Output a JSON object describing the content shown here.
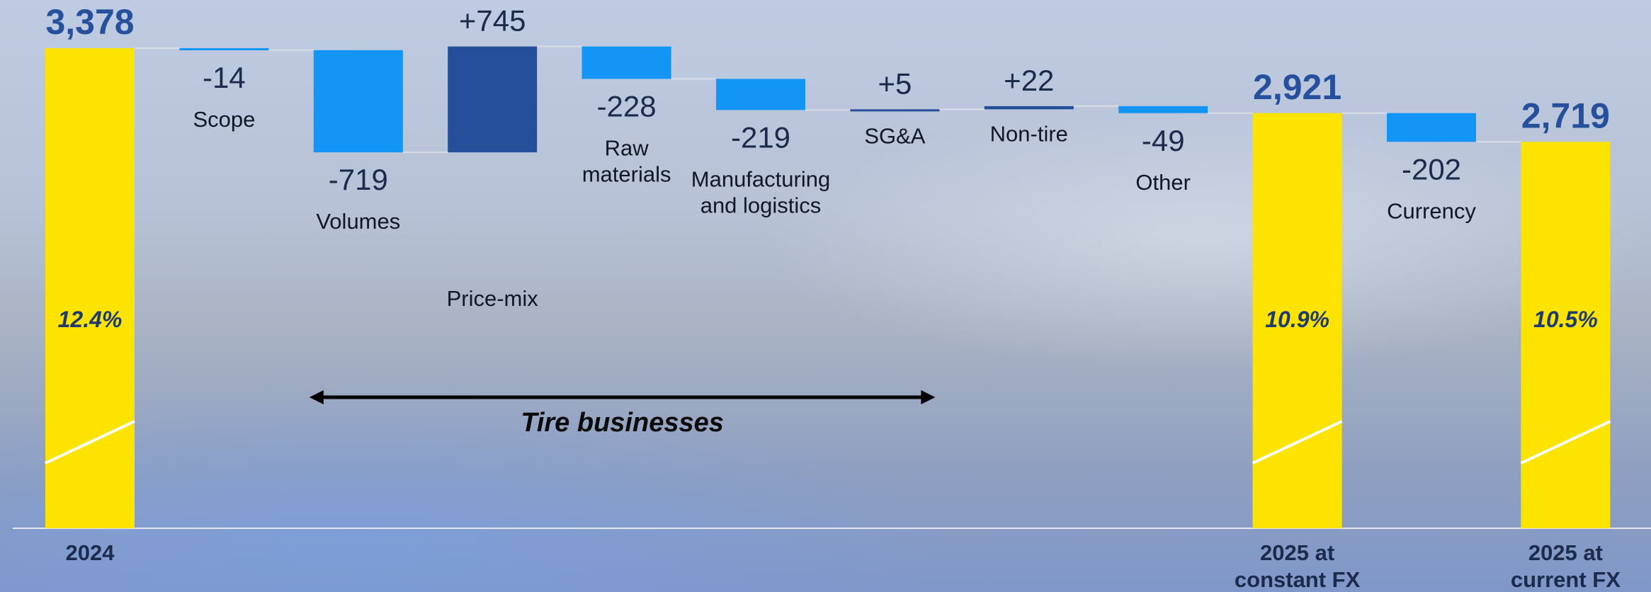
{
  "chart_data": {
    "type": "waterfall",
    "title": "",
    "xlabel": "",
    "ylabel": "",
    "unit": "",
    "steps": [
      {
        "kind": "total",
        "value": 3378,
        "value_label": "3,378",
        "category_lines": [
          "2024"
        ],
        "margin_label": "12.4%"
      },
      {
        "kind": "delta",
        "value": -14,
        "value_label": "-14",
        "category_lines": [
          "Scope"
        ]
      },
      {
        "kind": "delta",
        "value": -719,
        "value_label": "-719",
        "category_lines": [
          "Volumes"
        ]
      },
      {
        "kind": "delta",
        "value": 745,
        "value_label": "+745",
        "category_lines": [
          "Price-mix"
        ]
      },
      {
        "kind": "delta",
        "value": -228,
        "value_label": "-228",
        "category_lines": [
          "Raw",
          "materials"
        ]
      },
      {
        "kind": "delta",
        "value": -219,
        "value_label": "-219",
        "category_lines": [
          "Manufacturing",
          "and logistics"
        ]
      },
      {
        "kind": "delta",
        "value": 5,
        "value_label": "+5",
        "category_lines": [
          "SG&A"
        ]
      },
      {
        "kind": "delta",
        "value": 22,
        "value_label": "+22",
        "category_lines": [
          "Non-tire"
        ]
      },
      {
        "kind": "delta",
        "value": -49,
        "value_label": "-49",
        "category_lines": [
          "Other"
        ]
      },
      {
        "kind": "total",
        "value": 2921,
        "value_label": "2,921",
        "category_lines": [
          "2025 at",
          "constant FX"
        ],
        "margin_label": "10.9%"
      },
      {
        "kind": "delta",
        "value": -202,
        "value_label": "-202",
        "category_lines": [
          "Currency"
        ]
      },
      {
        "kind": "total",
        "value": 2719,
        "value_label": "2,719",
        "category_lines": [
          "2025 at",
          "current FX"
        ],
        "margin_label": "10.5%"
      }
    ],
    "annotations": [
      {
        "text": "Tire businesses",
        "from_step": 2,
        "to_step": 6
      }
    ],
    "colors": {
      "total": "#fde300",
      "decrease": "#1295f5",
      "increase": "#264f9b",
      "connector": "#d8dde6",
      "baseline": "#e4e8ee"
    }
  }
}
